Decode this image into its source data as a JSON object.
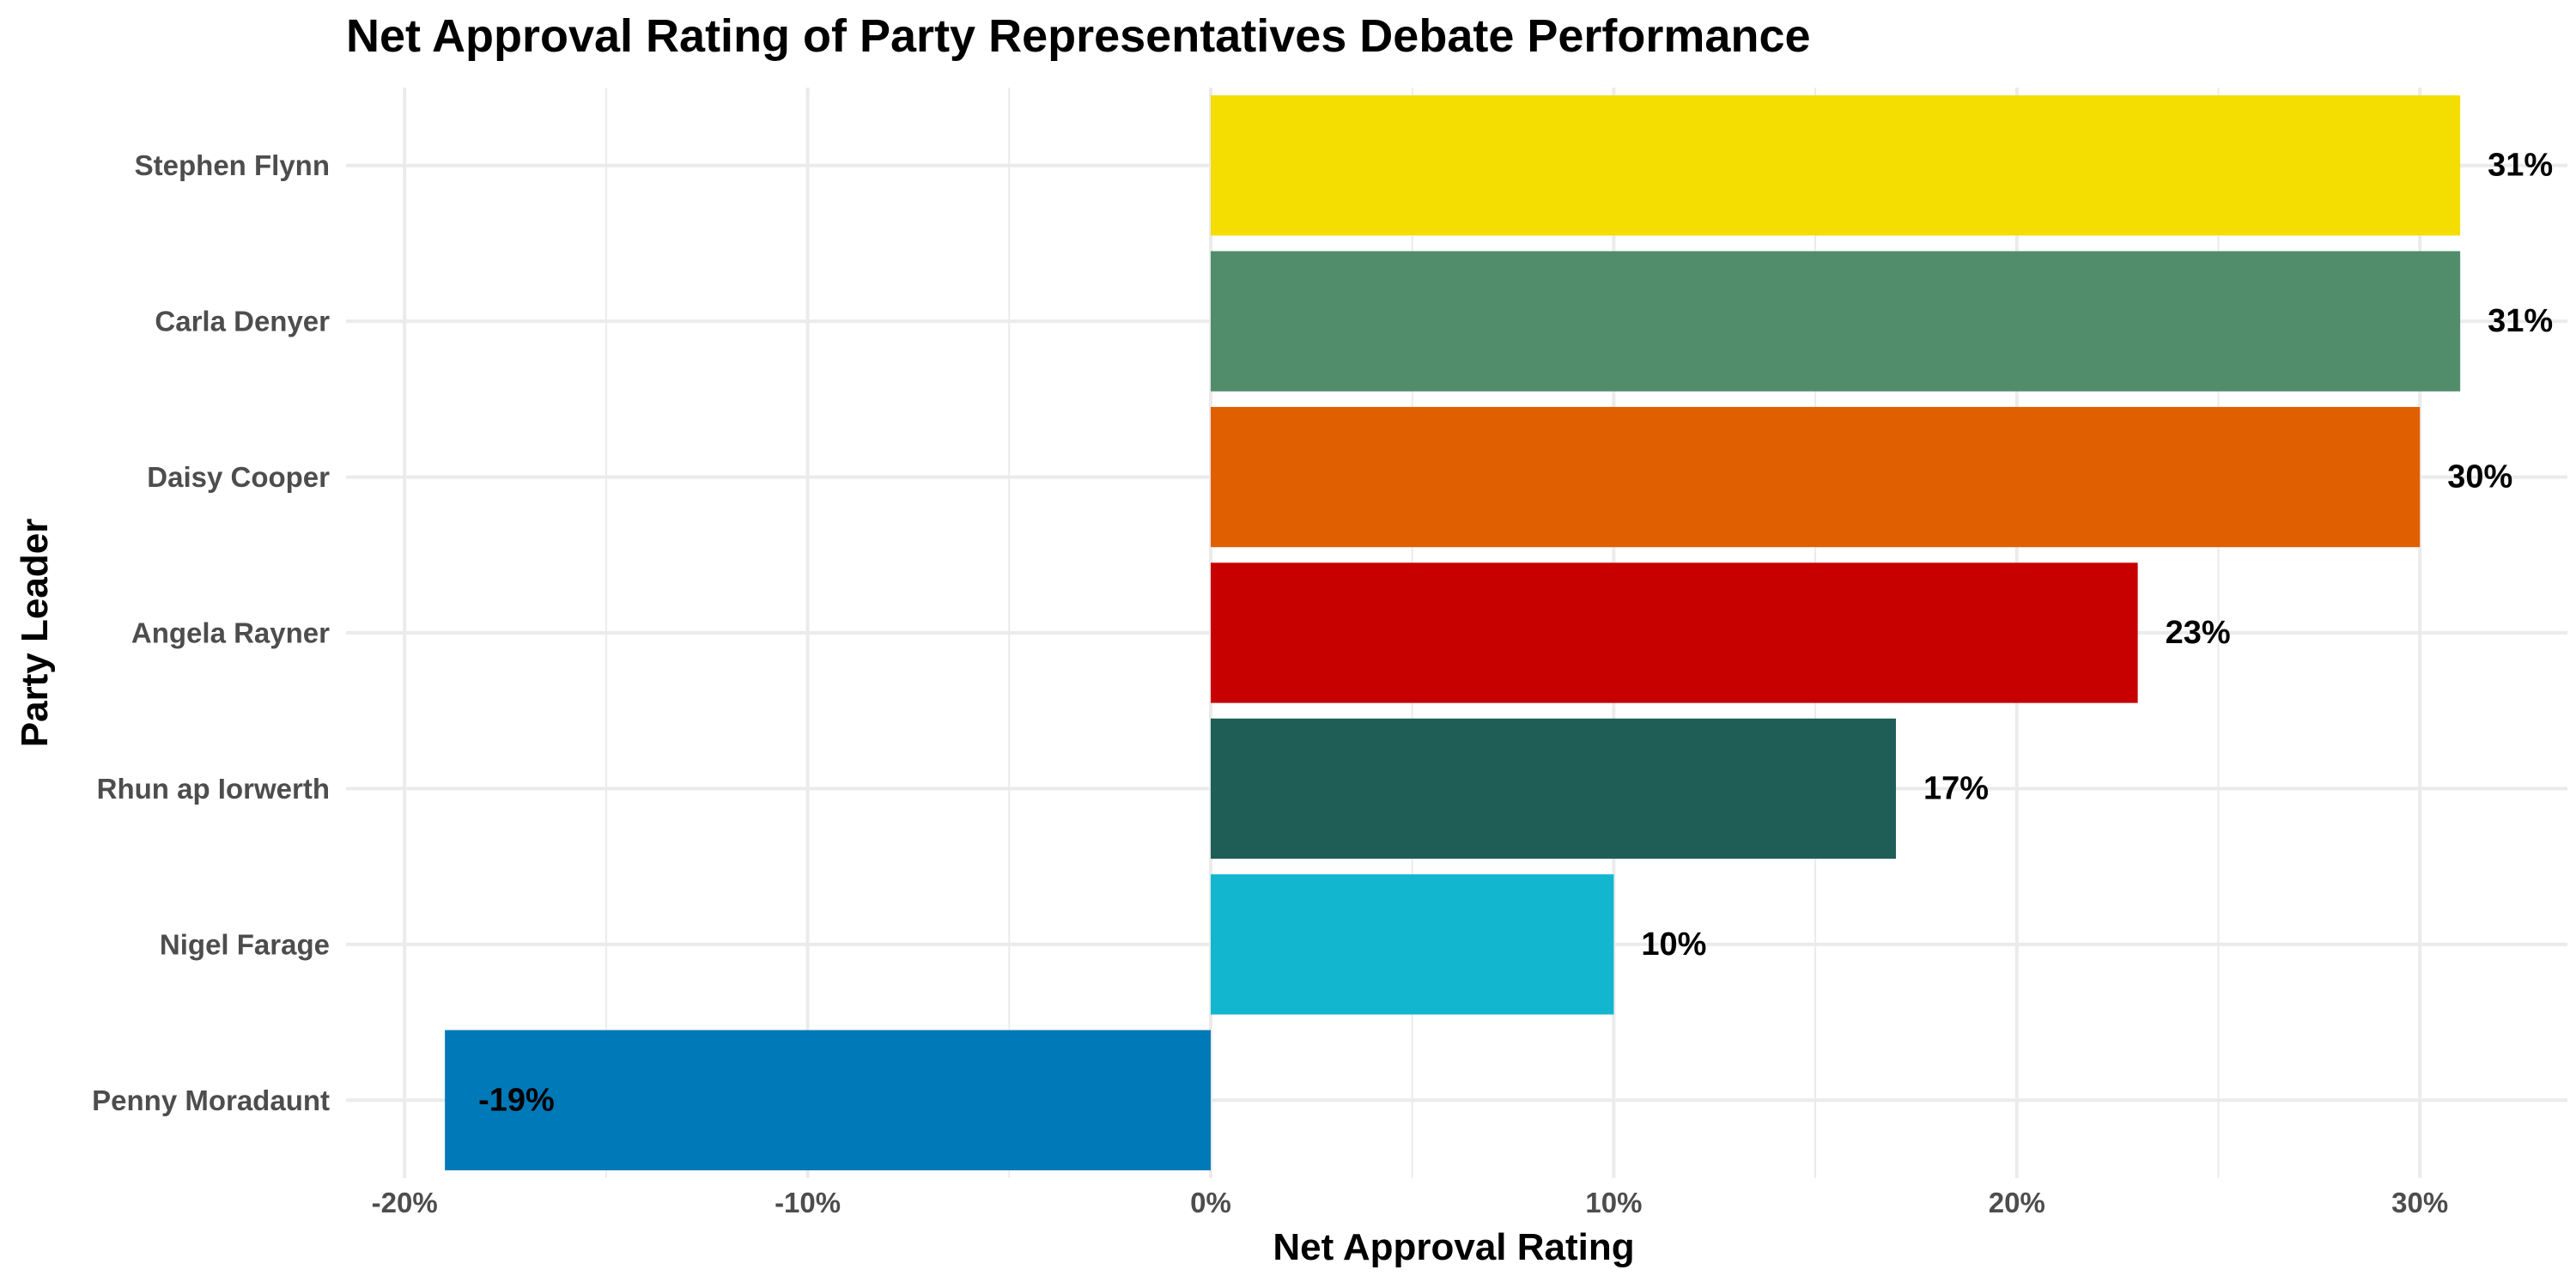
{
  "chart_data": {
    "type": "bar",
    "orientation": "horizontal",
    "title": "Net Approval Rating of Party Representatives Debate Performance",
    "xlabel": "Net Approval Rating",
    "ylabel": "Party Leader",
    "xlim": [
      -21.5,
      33.5
    ],
    "x_ticks": [
      -20,
      -10,
      0,
      10,
      20,
      30
    ],
    "x_tick_labels": [
      "-20%",
      "-10%",
      "0%",
      "10%",
      "20%",
      "30%"
    ],
    "grid": true,
    "legend": "none",
    "categories": [
      "Stephen Flynn",
      "Carla Denyer",
      "Daisy Cooper",
      "Angela Rayner",
      "Rhun ap Iorwerth",
      "Nigel Farage",
      "Penny Moradaunt"
    ],
    "values": [
      31,
      31,
      30,
      23,
      17,
      10,
      -19
    ],
    "data_labels": [
      "31%",
      "31%",
      "30%",
      "23%",
      "17%",
      "10%",
      "-19%"
    ],
    "colors": [
      "#F4DD00",
      "#528D6B",
      "#E05F00",
      "#C70000",
      "#1F5E56",
      "#12B6CF",
      "#0079B8"
    ]
  }
}
